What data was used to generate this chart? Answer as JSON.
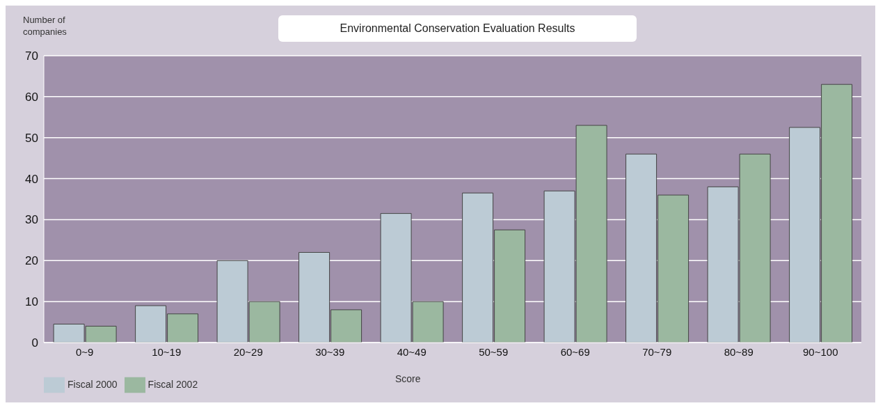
{
  "chart_data": {
    "type": "bar",
    "title": "Environmental Conservation Evaluation Results",
    "xlabel": "Score",
    "ylabel": "Number of companies",
    "categories": [
      "0~9",
      "10~19",
      "20~29",
      "30~39",
      "40~49",
      "50~59",
      "60~69",
      "70~79",
      "80~89",
      "90~100"
    ],
    "series": [
      {
        "name": "Fiscal 2000",
        "color": "#bccbd5",
        "values": [
          4.5,
          9,
          20,
          22,
          31.5,
          36.5,
          37,
          46,
          38,
          52.5
        ]
      },
      {
        "name": "Fiscal 2002",
        "color": "#9bb8a0",
        "values": [
          4,
          7,
          10,
          8,
          10,
          27.5,
          53,
          36,
          46,
          63
        ]
      }
    ],
    "ylim": [
      0,
      70
    ],
    "yticks": [
      0,
      10,
      20,
      30,
      40,
      50,
      60,
      70
    ],
    "grid": "y",
    "legend": "bottom left"
  }
}
